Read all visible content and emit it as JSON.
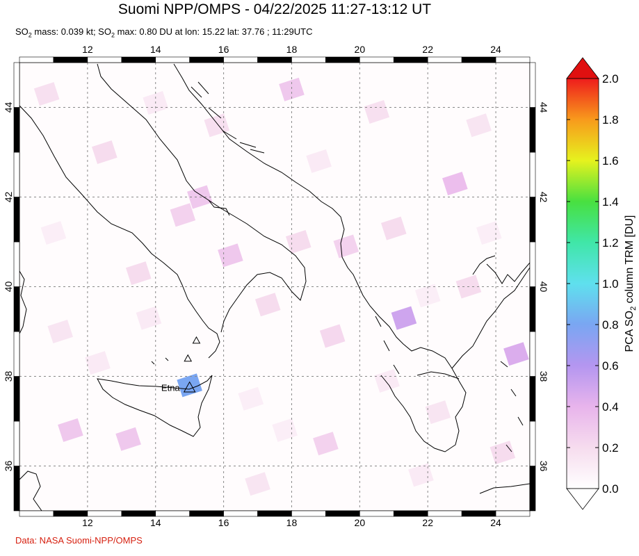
{
  "title": "Suomi NPP/OMPS - 04/22/2025 11:27-13:12 UT",
  "subtitle": {
    "mass_prefix": "SO",
    "mass_sub": "2",
    "mass_text": " mass: 0.039 kt; SO",
    "max_sub": "2",
    "max_text": " max: 0.80 DU at lon: 15.22 lat: 37.76 ; 11:29UTC"
  },
  "credit": "Data: NASA Suomi-NPP/OMPS",
  "map": {
    "lon_range": [
      10,
      25
    ],
    "lat_range": [
      35,
      45
    ],
    "lon_ticks": [
      "12",
      "14",
      "16",
      "18",
      "20",
      "22",
      "24"
    ],
    "lat_ticks": [
      "36",
      "38",
      "40",
      "42",
      "44"
    ],
    "lon_tick_values": [
      12,
      14,
      16,
      18,
      20,
      22,
      24
    ],
    "lat_tick_values": [
      36,
      38,
      40,
      42,
      44
    ],
    "gridlines": true,
    "volcano": {
      "name": "Etna",
      "lon": 15.0,
      "lat": 37.75
    },
    "extra_volcano_markers": [
      {
        "lon": 15.2,
        "lat": 38.8
      },
      {
        "lon": 14.95,
        "lat": 38.4
      }
    ],
    "so2_pixels": [
      {
        "lon": 15.0,
        "lat": 37.8,
        "value": 0.8
      },
      {
        "lon": 21.3,
        "lat": 39.3,
        "value": 0.5
      },
      {
        "lon": 24.6,
        "lat": 38.5,
        "value": 0.45
      },
      {
        "lon": 22.8,
        "lat": 42.3,
        "value": 0.35
      },
      {
        "lon": 18.0,
        "lat": 44.4,
        "value": 0.3
      },
      {
        "lon": 15.3,
        "lat": 42.0,
        "value": 0.3
      },
      {
        "lon": 16.2,
        "lat": 40.7,
        "value": 0.3
      },
      {
        "lon": 13.2,
        "lat": 36.6,
        "value": 0.3
      },
      {
        "lon": 11.5,
        "lat": 36.8,
        "value": 0.3
      },
      {
        "lon": 19.2,
        "lat": 38.9,
        "value": 0.22
      },
      {
        "lon": 19.0,
        "lat": 36.5,
        "value": 0.25
      },
      {
        "lon": 14.8,
        "lat": 41.6,
        "value": 0.25
      },
      {
        "lon": 19.6,
        "lat": 40.9,
        "value": 0.25
      },
      {
        "lon": 17.3,
        "lat": 39.6,
        "value": 0.2
      },
      {
        "lon": 18.2,
        "lat": 41.0,
        "value": 0.2
      },
      {
        "lon": 21.0,
        "lat": 41.3,
        "value": 0.2
      },
      {
        "lon": 23.2,
        "lat": 40.0,
        "value": 0.2
      },
      {
        "lon": 12.5,
        "lat": 43.0,
        "value": 0.2
      },
      {
        "lon": 10.8,
        "lat": 44.3,
        "value": 0.18
      },
      {
        "lon": 13.5,
        "lat": 40.3,
        "value": 0.2
      },
      {
        "lon": 24.2,
        "lat": 36.3,
        "value": 0.2
      },
      {
        "lon": 15.8,
        "lat": 43.6,
        "value": 0.18
      },
      {
        "lon": 20.5,
        "lat": 43.9,
        "value": 0.18
      },
      {
        "lon": 17.0,
        "lat": 35.6,
        "value": 0.15
      },
      {
        "lon": 11.2,
        "lat": 39.0,
        "value": 0.15
      },
      {
        "lon": 22.3,
        "lat": 37.2,
        "value": 0.15
      },
      {
        "lon": 12.3,
        "lat": 38.3,
        "value": 0.12
      },
      {
        "lon": 21.8,
        "lat": 35.8,
        "value": 0.12
      },
      {
        "lon": 23.5,
        "lat": 43.6,
        "value": 0.15
      },
      {
        "lon": 18.8,
        "lat": 42.8,
        "value": 0.12
      },
      {
        "lon": 14.0,
        "lat": 44.1,
        "value": 0.12
      },
      {
        "lon": 20.8,
        "lat": 37.9,
        "value": 0.12
      },
      {
        "lon": 16.8,
        "lat": 37.5,
        "value": 0.1
      },
      {
        "lon": 13.8,
        "lat": 39.3,
        "value": 0.12
      },
      {
        "lon": 11.0,
        "lat": 41.2,
        "value": 0.1
      },
      {
        "lon": 22.0,
        "lat": 39.8,
        "value": 0.1
      },
      {
        "lon": 17.8,
        "lat": 36.8,
        "value": 0.1
      },
      {
        "lon": 23.8,
        "lat": 41.2,
        "value": 0.1
      }
    ]
  },
  "colorbar": {
    "label_prefix": "PCA SO",
    "label_sub": "2",
    "label_suffix": " column TRM [DU]",
    "min": 0.0,
    "max": 2.0,
    "tick_labels": [
      "0.0",
      "0.2",
      "0.4",
      "0.6",
      "0.8",
      "1.0",
      "1.2",
      "1.4",
      "1.6",
      "1.8",
      "2.0"
    ],
    "tick_values": [
      0.0,
      0.2,
      0.4,
      0.6,
      0.8,
      1.0,
      1.2,
      1.4,
      1.6,
      1.8,
      2.0
    ],
    "colors": [
      "#ffffff",
      "#f6dcee",
      "#e8b4ec",
      "#b496f0",
      "#7aa6f2",
      "#5fe0ee",
      "#40e6a8",
      "#48e040",
      "#e6f21e",
      "#f89a1c",
      "#ee1c1c"
    ],
    "over_color": "#e01010",
    "under_color": "#ffffff"
  }
}
